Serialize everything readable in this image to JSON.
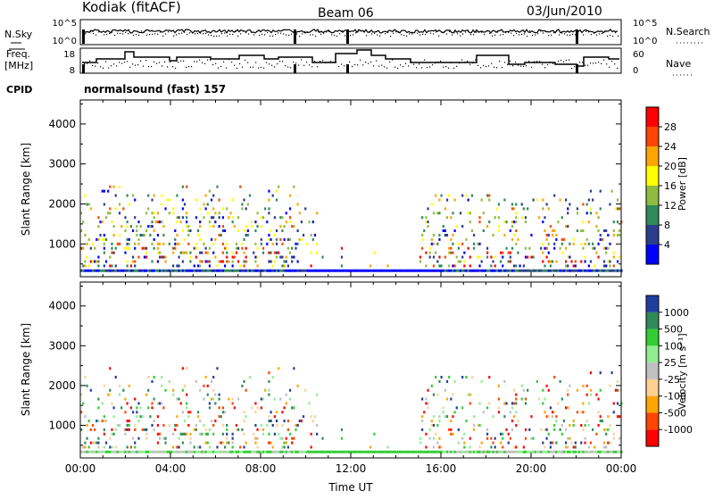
{
  "header": {
    "station": "Kodiak (fitACF)",
    "beam": "Beam 06",
    "date": "03/Jun/2010"
  },
  "strip1": {
    "left_label": "N.Sky",
    "right_label": "N.Search",
    "left_ticks": [
      "10^5",
      "10^0"
    ],
    "right_ticks": [
      "10^5",
      "10^0"
    ]
  },
  "strip2": {
    "left_label_1": "Freq.",
    "left_label_2": "[MHz]",
    "right_label": "Nave",
    "left_ticks": [
      "18",
      "8"
    ],
    "right_ticks": [
      "60",
      "0"
    ]
  },
  "cpid": {
    "label": "CPID",
    "value": "normalsound (fast) 157"
  },
  "colors": {
    "power": [
      "#0000ff",
      "#2b3e8c",
      "#2e8b57",
      "#8fbc3f",
      "#ffff00",
      "#ffa500",
      "#ff4500",
      "#ff0000"
    ],
    "velocity": [
      "#ff0000",
      "#ff4500",
      "#ffa500",
      "#ffd090",
      "#c0c0c0",
      "#90ee90",
      "#32cd32",
      "#2e8b57",
      "#1f3f9f"
    ]
  },
  "chart_data": [
    {
      "type": "heatmap",
      "title": "",
      "ylabel": "Slant Range [km]",
      "xlabel": "",
      "y_ticks": [
        "1000",
        "2000",
        "3000",
        "4000"
      ],
      "ylim": [
        180,
        4600
      ],
      "xlim": [
        "00:00",
        "24:00"
      ],
      "colorbar": {
        "label": "Power [dB]",
        "ticks": [
          "4",
          "8",
          "12",
          "16",
          "20",
          "24",
          "28"
        ],
        "range": [
          0,
          32
        ]
      }
    },
    {
      "type": "heatmap",
      "title": "",
      "ylabel": "Slant Range [km]",
      "xlabel": "Time UT",
      "x_ticks": [
        "00:00",
        "04:00",
        "08:00",
        "12:00",
        "16:00",
        "20:00",
        "00:00"
      ],
      "y_ticks": [
        "1000",
        "2000",
        "3000",
        "4000"
      ],
      "ylim": [
        180,
        4600
      ],
      "xlim": [
        "00:00",
        "24:00"
      ],
      "colorbar": {
        "label": "Velocity [m s⁻¹]",
        "ticks": [
          "1000",
          "500",
          "100",
          "25",
          "-25",
          "-100",
          "-500",
          "-1000"
        ]
      }
    }
  ]
}
